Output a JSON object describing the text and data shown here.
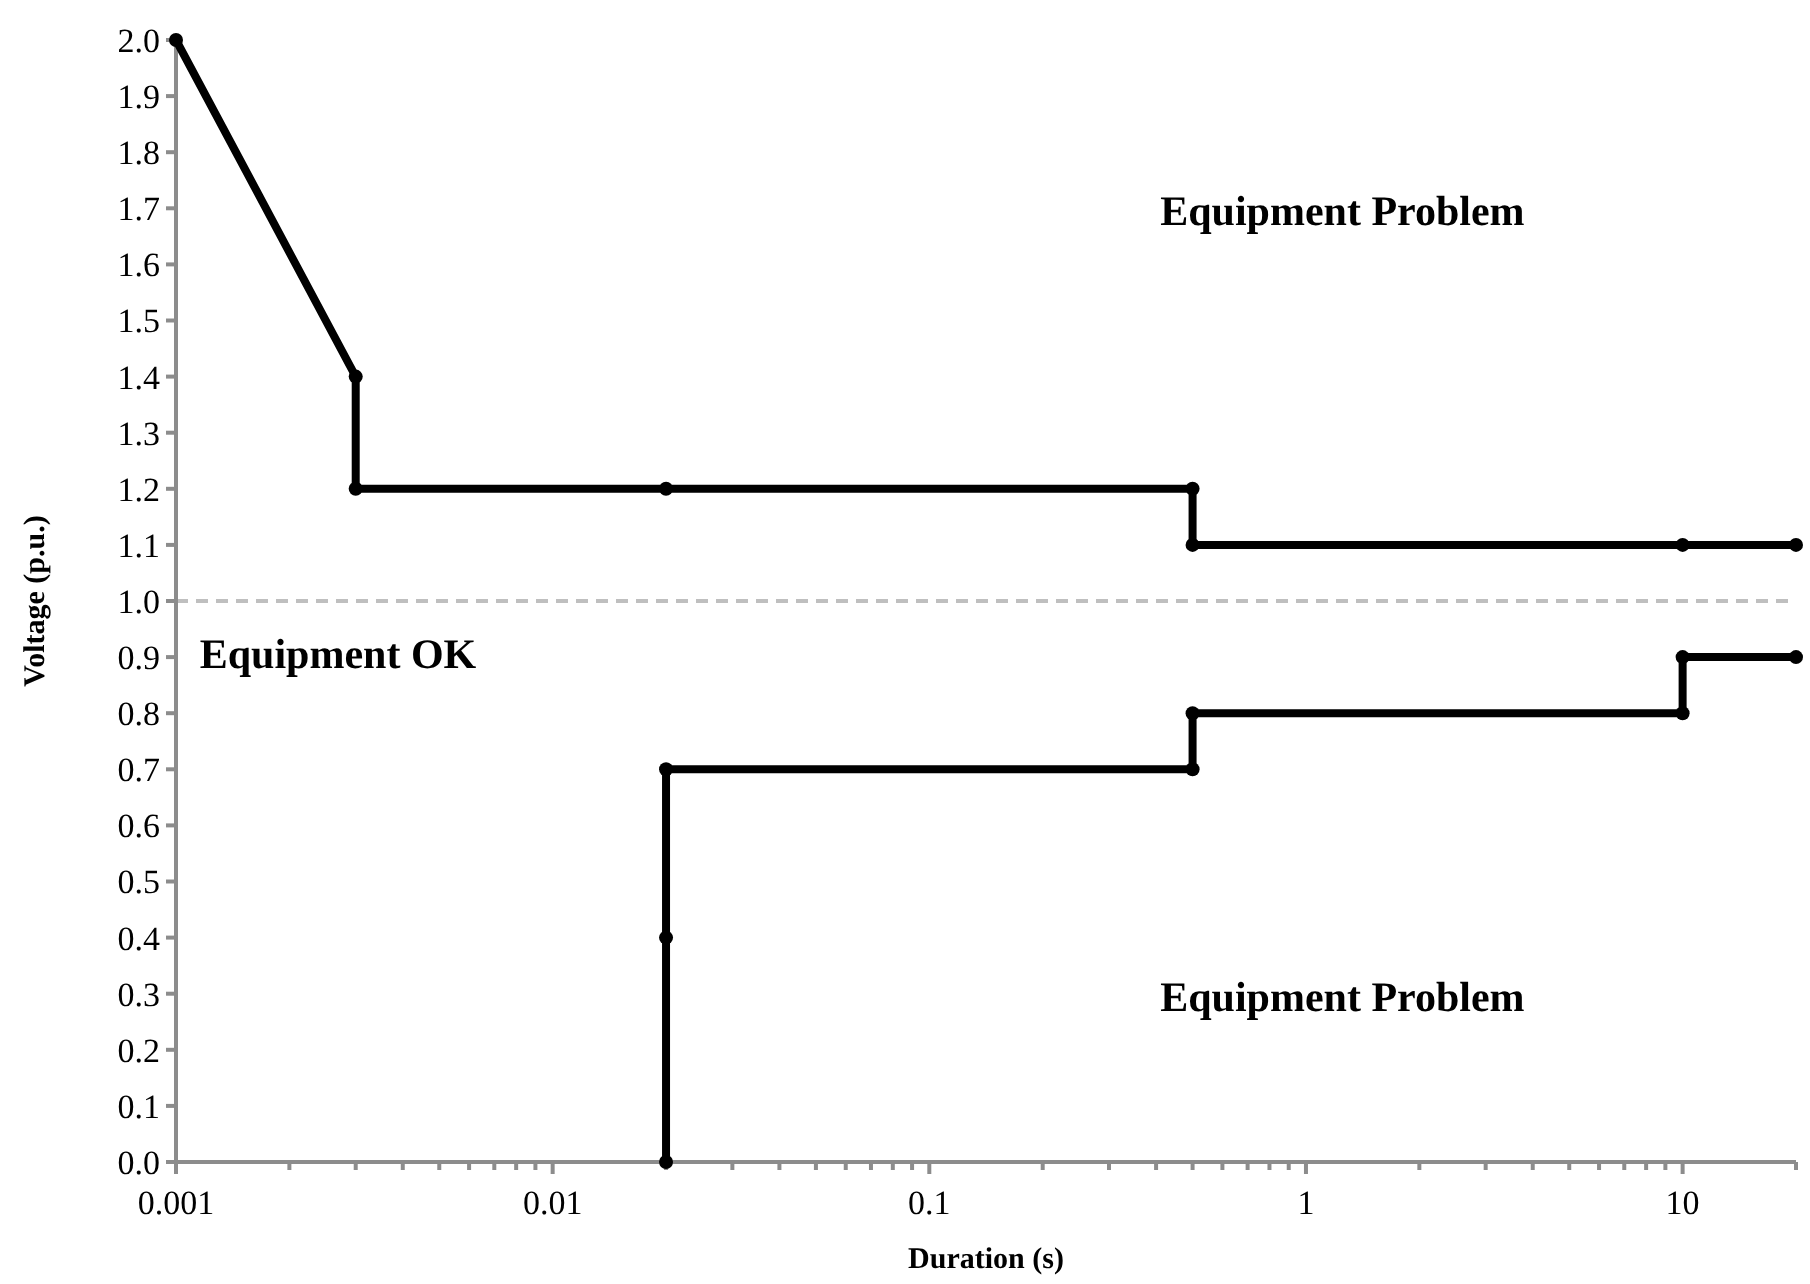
{
  "chart_data": {
    "type": "line",
    "xlabel": "Duration (s)",
    "ylabel": "Voltage (p.u.)",
    "log": "x",
    "xlim": [
      0.001,
      20
    ],
    "xticks": [
      0.001,
      {
        "value": 0.002,
        "label": null
      },
      {
        "value": 0.003,
        "label": null
      },
      {
        "value": 0.004,
        "label": null
      },
      {
        "value": 0.005,
        "label": null
      },
      {
        "value": 0.006,
        "label": null
      },
      {
        "value": 0.007,
        "label": null
      },
      {
        "value": 0.008,
        "label": null
      },
      {
        "value": 0.009,
        "label": null
      },
      0.01,
      {
        "value": 0.02,
        "label": null
      },
      {
        "value": 0.03,
        "label": null
      },
      {
        "value": 0.04,
        "label": null
      },
      {
        "value": 0.05,
        "label": null
      },
      {
        "value": 0.06,
        "label": null
      },
      {
        "value": 0.07,
        "label": null
      },
      {
        "value": 0.08,
        "label": null
      },
      {
        "value": 0.09,
        "label": null
      },
      0.1,
      {
        "value": 0.2,
        "label": null
      },
      {
        "value": 0.3,
        "label": null
      },
      {
        "value": 0.4,
        "label": null
      },
      {
        "value": 0.5,
        "label": null
      },
      {
        "value": 0.6,
        "label": null
      },
      {
        "value": 0.7,
        "label": null
      },
      {
        "value": 0.8,
        "label": null
      },
      {
        "value": 0.9,
        "label": null
      },
      1,
      {
        "value": 2,
        "label": null
      },
      {
        "value": 3,
        "label": null
      },
      {
        "value": 4,
        "label": null
      },
      {
        "value": 5,
        "label": null
      },
      {
        "value": 6,
        "label": null
      },
      {
        "value": 7,
        "label": null
      },
      {
        "value": 8,
        "label": null
      },
      {
        "value": 9,
        "label": null
      },
      10,
      {
        "value": 20,
        "label": null
      }
    ],
    "ylim": [
      0,
      2
    ],
    "yticks": [
      {
        "value": 0,
        "label": "0.0"
      },
      0.1,
      0.2,
      0.3,
      0.4,
      0.5,
      0.6,
      0.7,
      0.8,
      0.9,
      {
        "value": 1,
        "label": "1.0"
      },
      1.1,
      1.2,
      1.3,
      1.4,
      1.5,
      1.6,
      1.7,
      1.8,
      1.9,
      {
        "value": 2,
        "label": "2.0"
      }
    ],
    "grid": false,
    "marker": "circle",
    "line_style": "solid",
    "series": [
      {
        "color": "#000000",
        "x": [
          0.001,
          0.003,
          0.003,
          0.02,
          0.5,
          0.5,
          10,
          20
        ],
        "values": [
          2.0,
          1.4,
          1.2,
          1.2,
          1.2,
          1.1,
          1.1,
          1.1
        ]
      },
      {
        "color": "#000000",
        "x": [
          0.02,
          0.02,
          0.02,
          0.5,
          0.5,
          10,
          10,
          20
        ],
        "values": [
          0,
          0.4,
          0.7,
          0.7,
          0.8,
          0.8,
          0.9,
          0.9
        ]
      }
    ],
    "ref_lines": [
      {
        "axis": "y",
        "value": 1.0,
        "color": "#bfbfbf",
        "line_style": "dashed"
      }
    ],
    "annotations": [
      "Equipment Problem",
      "Equipment OK",
      "Equipment Problem"
    ]
  }
}
